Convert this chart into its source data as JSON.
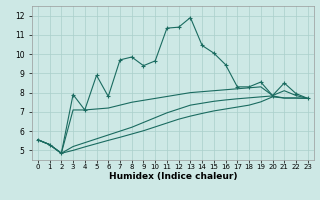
{
  "background_color": "#cde8e5",
  "grid_color": "#aacfcb",
  "line_color": "#1a6b60",
  "xlabel": "Humidex (Indice chaleur)",
  "xlim": [
    -0.5,
    23.5
  ],
  "ylim": [
    4.5,
    12.5
  ],
  "yticks": [
    5,
    6,
    7,
    8,
    9,
    10,
    11,
    12
  ],
  "xtick_labels": [
    "0",
    "1",
    "2",
    "3",
    "4",
    "5",
    "6",
    "7",
    "8",
    "9",
    "10",
    "11",
    "12",
    "13",
    "14",
    "15",
    "16",
    "17",
    "18",
    "19",
    "20",
    "21",
    "22",
    "23"
  ],
  "line1_x": [
    0,
    1,
    2,
    3,
    4,
    5,
    6,
    7,
    8,
    9,
    10,
    11,
    12,
    13,
    14,
    15,
    16,
    17,
    18,
    19,
    20,
    21,
    22,
    23
  ],
  "line1_y": [
    5.55,
    5.3,
    4.85,
    7.9,
    7.1,
    8.9,
    7.8,
    9.7,
    9.85,
    9.4,
    9.65,
    11.35,
    11.4,
    11.9,
    10.45,
    10.05,
    9.45,
    8.3,
    8.3,
    8.55,
    7.85,
    8.5,
    7.95,
    7.7
  ],
  "line2_x": [
    0,
    1,
    2,
    3,
    4,
    5,
    6,
    7,
    8,
    9,
    10,
    11,
    12,
    13,
    14,
    15,
    16,
    17,
    18,
    19,
    20,
    21,
    22,
    23
  ],
  "line2_y": [
    5.55,
    5.3,
    4.85,
    7.1,
    7.1,
    7.15,
    7.2,
    7.35,
    7.5,
    7.6,
    7.7,
    7.8,
    7.9,
    8.0,
    8.05,
    8.1,
    8.15,
    8.2,
    8.25,
    8.3,
    7.85,
    8.1,
    7.85,
    7.7
  ],
  "line3_x": [
    0,
    1,
    2,
    3,
    4,
    5,
    6,
    7,
    8,
    9,
    10,
    11,
    12,
    13,
    14,
    15,
    16,
    17,
    18,
    19,
    20,
    21,
    22,
    23
  ],
  "line3_y": [
    5.55,
    5.3,
    4.85,
    5.2,
    5.4,
    5.6,
    5.8,
    6.0,
    6.2,
    6.45,
    6.7,
    6.95,
    7.15,
    7.35,
    7.45,
    7.55,
    7.62,
    7.68,
    7.73,
    7.78,
    7.83,
    7.72,
    7.72,
    7.7
  ],
  "line4_x": [
    0,
    1,
    2,
    3,
    4,
    5,
    6,
    7,
    8,
    9,
    10,
    11,
    12,
    13,
    14,
    15,
    16,
    17,
    18,
    19,
    20,
    21,
    22,
    23
  ],
  "line4_y": [
    5.55,
    5.3,
    4.85,
    5.0,
    5.18,
    5.35,
    5.52,
    5.68,
    5.85,
    6.02,
    6.22,
    6.42,
    6.62,
    6.78,
    6.92,
    7.05,
    7.15,
    7.25,
    7.35,
    7.52,
    7.78,
    7.72,
    7.72,
    7.7
  ]
}
